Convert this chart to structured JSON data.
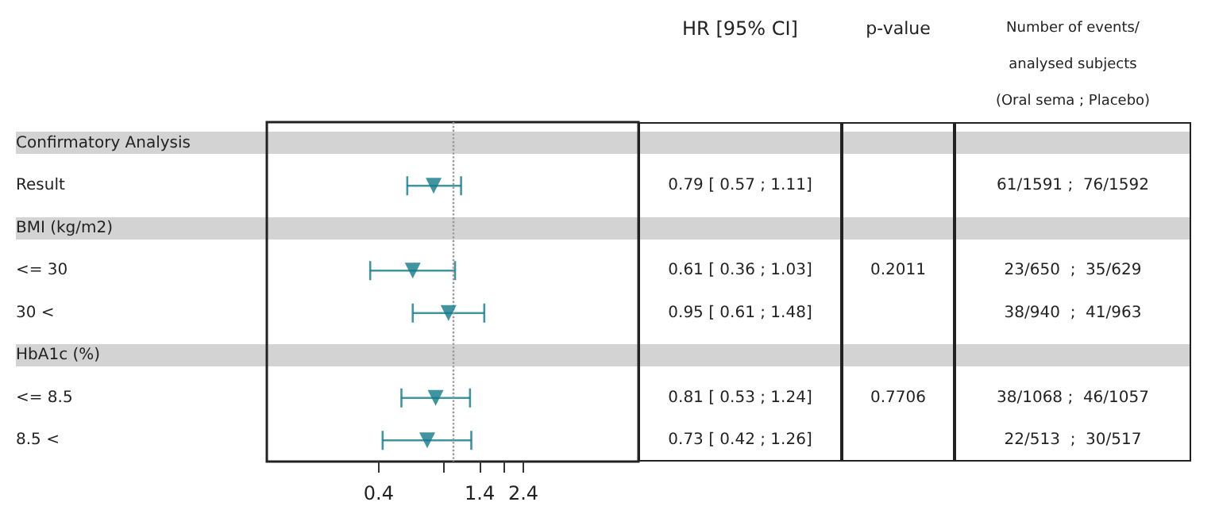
{
  "chart_data": [
    {
      "type": "scatter",
      "orientation": "horizontal",
      "annotations": [
        "HR [95% CI]"
      ],
      "categories": [
        "Confirmatory Analysis",
        "Result",
        "BMI (kg/m2)",
        "<= 30",
        "30 <",
        "HbA1c (%)",
        "<= 8.5",
        "8.5 <"
      ],
      "values": [
        null,
        0.79,
        null,
        0.61,
        0.95,
        null,
        0.81,
        0.73
      ],
      "errors": [
        null,
        [
          0.57,
          1.11
        ],
        null,
        [
          0.36,
          1.03
        ],
        [
          0.61,
          1.48
        ],
        null,
        [
          0.53,
          1.24
        ],
        [
          0.42,
          1.26
        ]
      ],
      "value_labels": [
        null,
        "0.79 [ 0.57 ; 1.11]",
        null,
        "0.61 [ 0.36 ; 1.03]",
        "0.95 [ 0.61 ; 1.48]",
        null,
        "0.81 [ 0.53 ; 1.24]",
        "0.73 [ 0.42 ; 1.26]"
      ],
      "color": "#127a8a",
      "marker": "triangle",
      "log": "x",
      "xlim": [
        0.1,
        10
      ],
      "xticks": [
        0.4,
        {
          "value": 0.9,
          "label": null
        },
        1.4,
        {
          "value": 1.9,
          "label": null
        },
        2.4
      ],
      "ref_lines": [
        {
          "axis": "x",
          "value": 1,
          "color": "#999999",
          "line_style": "dotted"
        }
      ],
      "grid": false
    },
    {
      "type": "other",
      "title": "p-value",
      "annotations": [
        {
          "text": "0.2011",
          "y": "<= 30"
        },
        {
          "text": "0.7706",
          "y": "<= 8.5"
        }
      ]
    },
    {
      "type": "other",
      "title": "Number of events/\nanalysed subjects\n(Oral sema ; Placebo)",
      "annotations": [
        {
          "text": "61/1591 ;  76/1592",
          "y": "Result"
        },
        {
          "text": "23/650  ;  35/629",
          "y": "<= 30"
        },
        {
          "text": "38/940  ;  41/963",
          "y": "30 <"
        },
        {
          "text": "38/1068 ;  46/1057",
          "y": "<= 8.5"
        },
        {
          "text": "22/513  ;  30/517",
          "y": "8.5 <"
        }
      ]
    }
  ]
}
